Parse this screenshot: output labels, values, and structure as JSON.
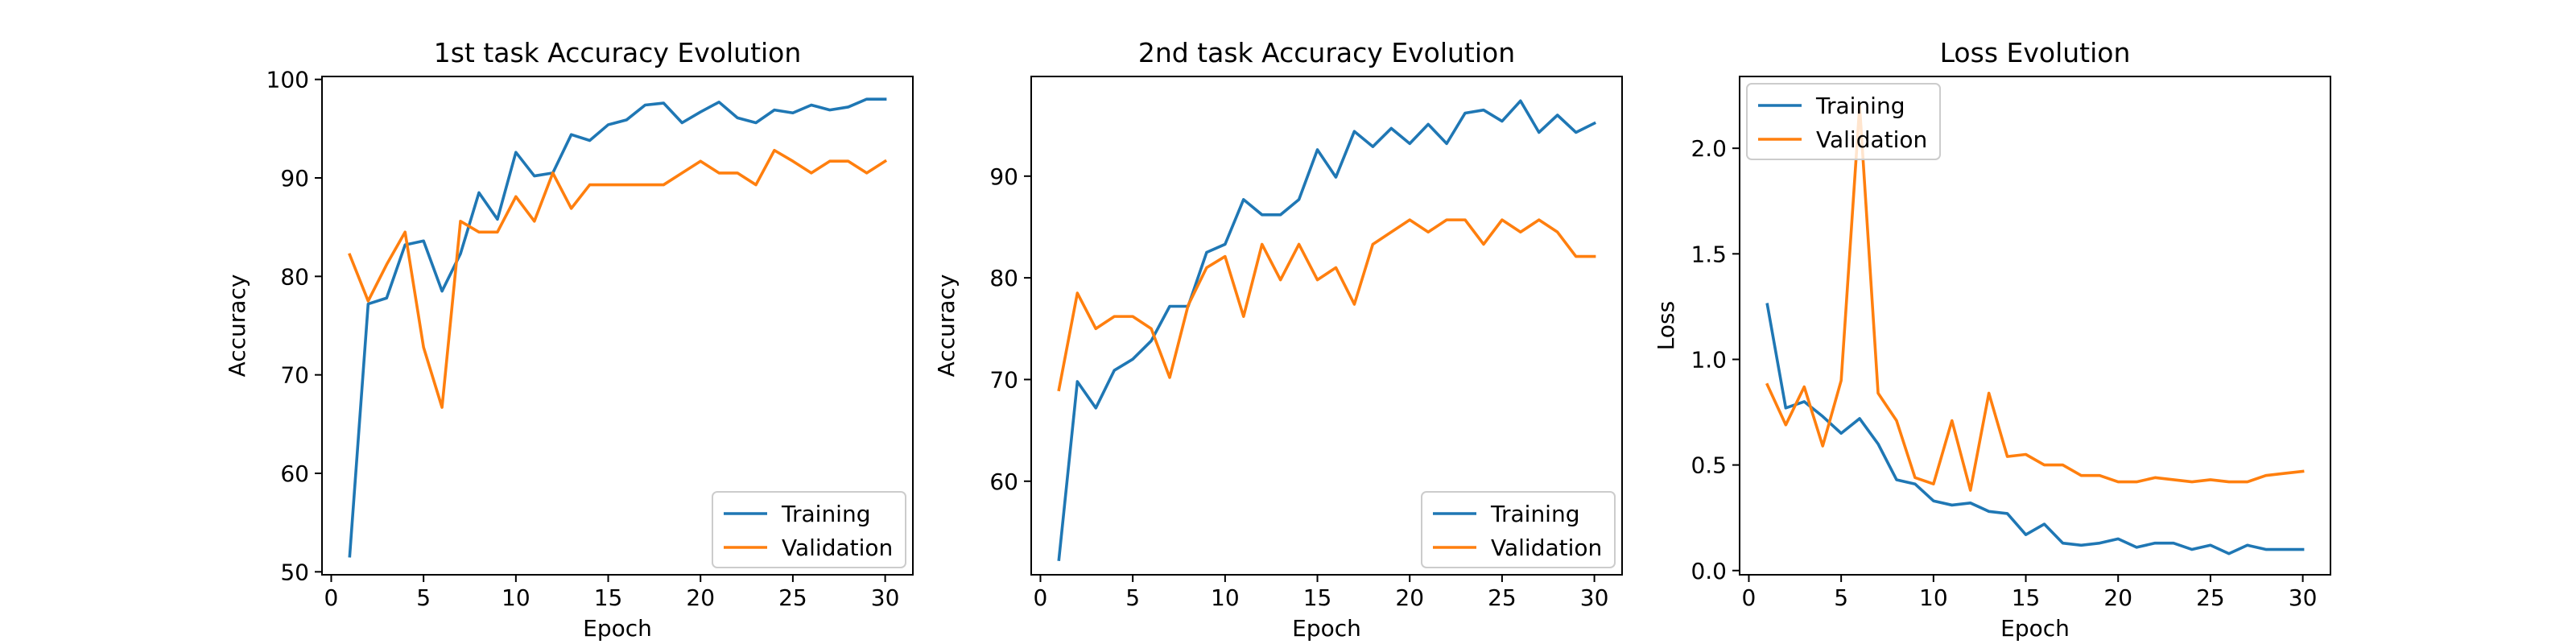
{
  "colors": {
    "training": "#1f77b4",
    "validation": "#ff7f0e"
  },
  "chart_data": [
    {
      "type": "line",
      "title": "1st task Accuracy Evolution",
      "xlabel": "Epoch",
      "ylabel": "Accuracy",
      "xlim": [
        -0.5,
        31.5
      ],
      "ylim": [
        49.7,
        100.3
      ],
      "xticks": [
        0,
        5,
        10,
        15,
        20,
        25,
        30
      ],
      "yticks": [
        50,
        60,
        70,
        80,
        90,
        100
      ],
      "legend": "lower-right",
      "grid": false,
      "x": [
        1,
        2,
        3,
        4,
        5,
        6,
        7,
        8,
        9,
        10,
        11,
        12,
        13,
        14,
        15,
        16,
        17,
        18,
        19,
        20,
        21,
        22,
        23,
        24,
        25,
        26,
        27,
        28,
        29,
        30
      ],
      "series": [
        {
          "name": "Training",
          "color": "#1f77b4",
          "values": [
            51.6,
            77.2,
            77.8,
            83.2,
            83.6,
            78.5,
            82.3,
            88.5,
            85.8,
            92.6,
            90.2,
            90.5,
            94.4,
            93.8,
            95.4,
            95.9,
            97.4,
            97.6,
            95.6,
            96.7,
            97.7,
            96.1,
            95.6,
            96.9,
            96.6,
            97.4,
            96.9,
            97.2,
            98.0,
            98.0
          ]
        },
        {
          "name": "Validation",
          "color": "#ff7f0e",
          "values": [
            82.2,
            77.5,
            81.2,
            84.5,
            72.8,
            66.7,
            85.6,
            84.5,
            84.5,
            88.1,
            85.6,
            90.5,
            86.9,
            89.3,
            89.3,
            89.3,
            89.3,
            89.3,
            90.5,
            91.7,
            90.5,
            90.5,
            89.3,
            92.8,
            91.7,
            90.5,
            91.7,
            91.7,
            90.5,
            91.7
          ]
        }
      ]
    },
    {
      "type": "line",
      "title": "2nd task Accuracy Evolution",
      "xlabel": "Epoch",
      "ylabel": "Accuracy",
      "xlim": [
        -0.5,
        31.5
      ],
      "ylim": [
        50.8,
        99.8
      ],
      "xticks": [
        0,
        5,
        10,
        15,
        20,
        25,
        30
      ],
      "yticks": [
        60,
        70,
        80,
        90
      ],
      "legend": "lower-right",
      "grid": false,
      "x": [
        1,
        2,
        3,
        4,
        5,
        6,
        7,
        8,
        9,
        10,
        11,
        12,
        13,
        14,
        15,
        16,
        17,
        18,
        19,
        20,
        21,
        22,
        23,
        24,
        25,
        26,
        27,
        28,
        29,
        30
      ],
      "series": [
        {
          "name": "Training",
          "color": "#1f77b4",
          "values": [
            52.3,
            69.8,
            67.2,
            70.9,
            72.0,
            73.8,
            77.2,
            77.2,
            82.5,
            83.3,
            87.7,
            86.2,
            86.2,
            87.7,
            92.6,
            89.9,
            94.4,
            92.9,
            94.7,
            93.2,
            95.1,
            93.2,
            96.2,
            96.5,
            95.4,
            97.4,
            94.3,
            96.0,
            94.3,
            95.2
          ]
        },
        {
          "name": "Validation",
          "color": "#ff7f0e",
          "values": [
            69.0,
            78.5,
            75.0,
            76.2,
            76.2,
            75.0,
            70.2,
            77.3,
            81.0,
            82.1,
            76.2,
            83.3,
            79.8,
            83.3,
            79.8,
            81.0,
            77.4,
            83.3,
            84.5,
            85.7,
            84.5,
            85.7,
            85.7,
            83.3,
            85.7,
            84.5,
            85.7,
            84.5,
            82.1,
            82.1
          ]
        }
      ]
    },
    {
      "type": "line",
      "title": "Loss Evolution",
      "xlabel": "Epoch",
      "ylabel": "Loss",
      "xlim": [
        -0.5,
        31.5
      ],
      "ylim": [
        -0.02,
        2.34
      ],
      "xticks": [
        0,
        5,
        10,
        15,
        20,
        25,
        30
      ],
      "yticks": [
        0.0,
        0.5,
        1.0,
        1.5,
        2.0
      ],
      "ytick_labels": [
        "0.0",
        "0.5",
        "1.0",
        "1.5",
        "2.0"
      ],
      "legend": "upper-left",
      "grid": false,
      "x": [
        1,
        2,
        3,
        4,
        5,
        6,
        7,
        8,
        9,
        10,
        11,
        12,
        13,
        14,
        15,
        16,
        17,
        18,
        19,
        20,
        21,
        22,
        23,
        24,
        25,
        26,
        27,
        28,
        29,
        30
      ],
      "series": [
        {
          "name": "Training",
          "color": "#1f77b4",
          "values": [
            1.26,
            0.77,
            0.8,
            0.73,
            0.65,
            0.72,
            0.6,
            0.43,
            0.41,
            0.33,
            0.31,
            0.32,
            0.28,
            0.27,
            0.17,
            0.22,
            0.13,
            0.12,
            0.13,
            0.15,
            0.11,
            0.13,
            0.13,
            0.1,
            0.12,
            0.08,
            0.12,
            0.1,
            0.1,
            0.1
          ]
        },
        {
          "name": "Validation",
          "color": "#ff7f0e",
          "values": [
            0.88,
            0.69,
            0.87,
            0.59,
            0.9,
            2.2,
            0.84,
            0.71,
            0.44,
            0.41,
            0.71,
            0.38,
            0.84,
            0.54,
            0.55,
            0.5,
            0.5,
            0.45,
            0.45,
            0.42,
            0.42,
            0.44,
            0.43,
            0.42,
            0.43,
            0.42,
            0.42,
            0.45,
            0.46,
            0.47
          ]
        }
      ]
    }
  ]
}
